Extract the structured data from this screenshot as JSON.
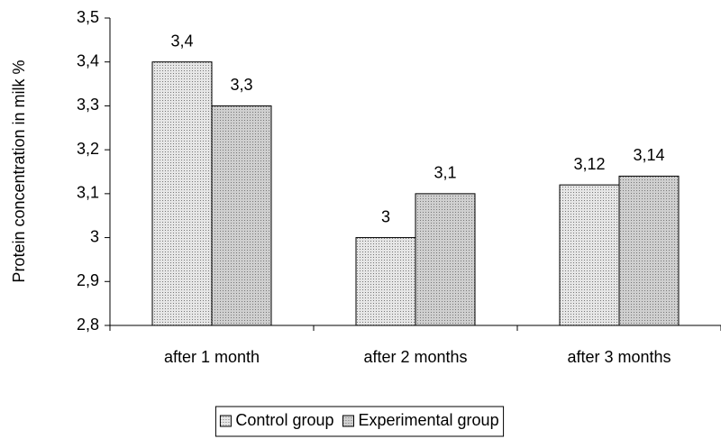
{
  "chart_data": {
    "type": "bar",
    "y_label": "Protein concentration in milk %",
    "categories": [
      "after 1 month",
      "after 2 months",
      "after 3 months"
    ],
    "series": [
      {
        "name": "Control group",
        "color": "#e6e6e6",
        "values": [
          3.4,
          3,
          3.12
        ],
        "value_labels": [
          "3,4",
          "3",
          "3,12"
        ]
      },
      {
        "name": "Experimental group",
        "color": "#cfcfcf",
        "values": [
          3.3,
          3.1,
          3.14
        ],
        "value_labels": [
          "3,3",
          "3,1",
          "3,14"
        ]
      }
    ],
    "ylim": [
      2.8,
      3.5
    ],
    "yticks": [
      {
        "value": 2.8,
        "label": "2,8"
      },
      {
        "value": 2.9,
        "label": "2,9"
      },
      3,
      {
        "value": 3.1,
        "label": "3,1"
      },
      {
        "value": 3.2,
        "label": "3,2"
      },
      {
        "value": 3.3,
        "label": "3,3"
      },
      {
        "value": 3.4,
        "label": "3,4"
      },
      {
        "value": 3.5,
        "label": "3,5"
      }
    ],
    "grid": false,
    "legend": "bottom"
  }
}
